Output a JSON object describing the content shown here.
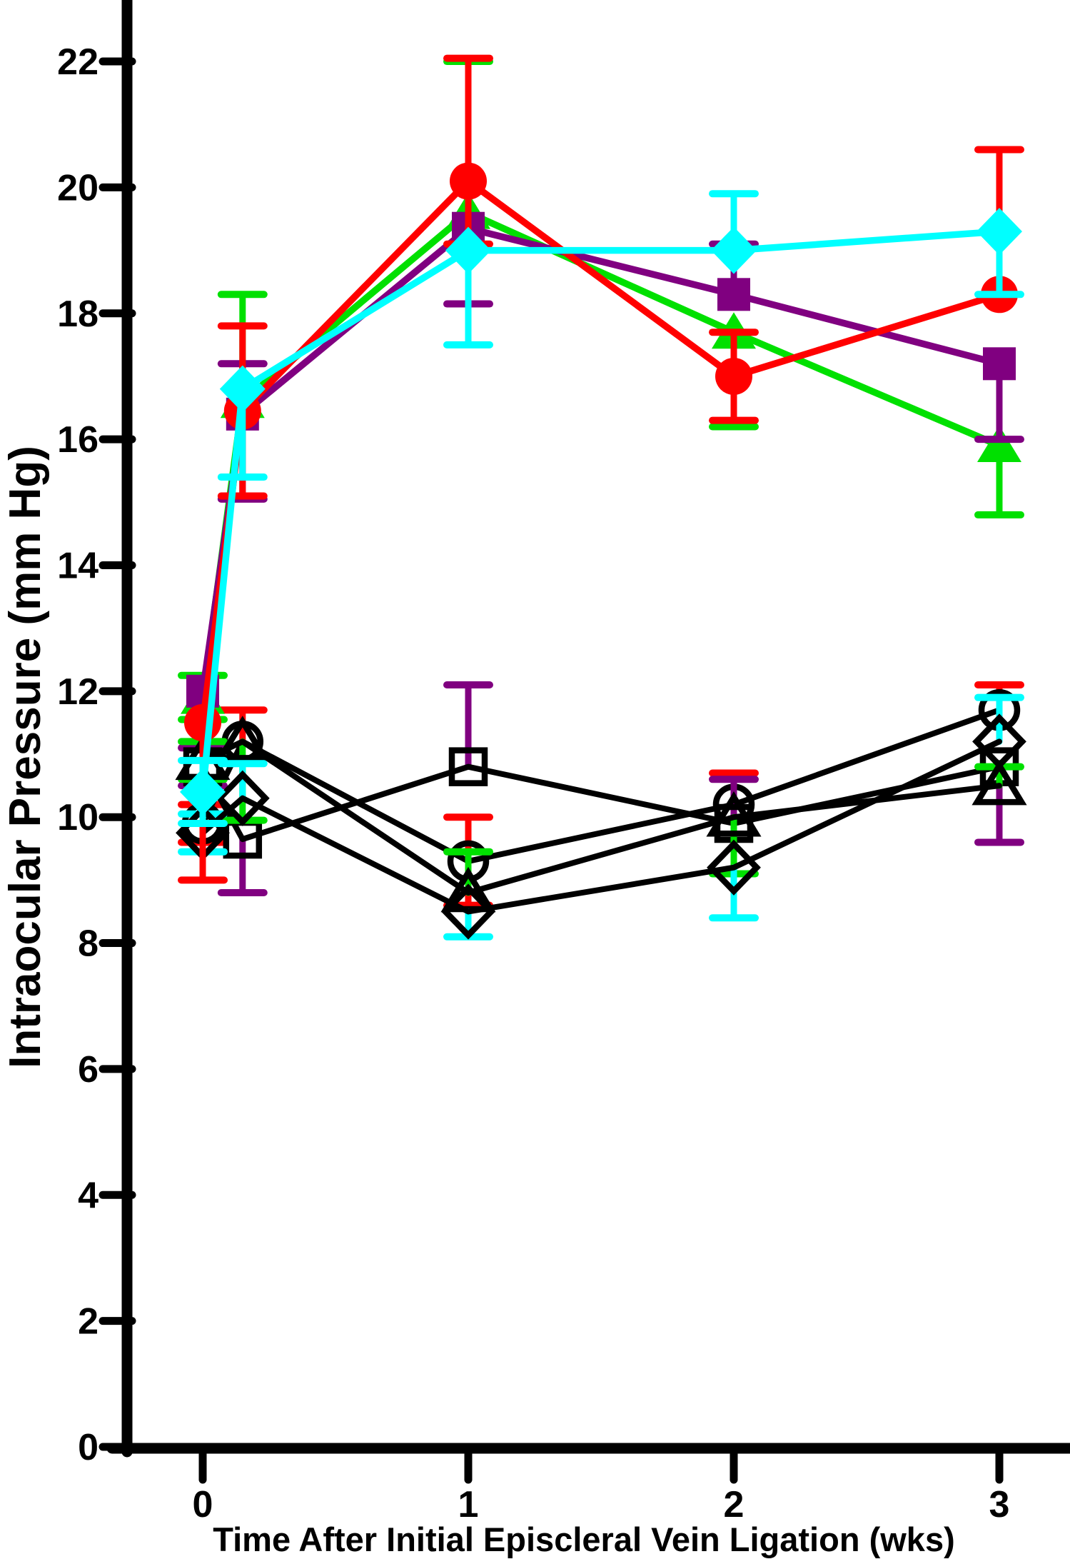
{
  "chart_data": {
    "type": "line",
    "title": "",
    "xlabel": "Time After Initial Episcleral Vein Ligation (wks)",
    "ylabel": "Intraocular  Pressure  (mm Hg)",
    "x": [
      0,
      0.15,
      1,
      2,
      3
    ],
    "x_ticks": [
      0,
      1,
      2,
      3
    ],
    "y_ticks": [
      0,
      2,
      4,
      6,
      8,
      10,
      12,
      14,
      16,
      18,
      20,
      22
    ],
    "ylim": [
      0,
      22
    ],
    "xlim": [
      -0.35,
      3.27
    ],
    "grid": false,
    "legend": "none",
    "series": [
      {
        "name": "ligated-eye-red-circles",
        "marker": "circle",
        "marker_style": "filled",
        "color": "#ff0000",
        "values": [
          11.5,
          16.45,
          20.1,
          17.0,
          18.3
        ],
        "err_up": [
          0,
          1.35,
          1.95,
          0.7,
          2.3
        ],
        "err_down": [
          2.5,
          1.35,
          1.0,
          0.7,
          0
        ]
      },
      {
        "name": "ligated-eye-purple-squares",
        "marker": "square",
        "marker_style": "filled",
        "color": "#800080",
        "values": [
          12.0,
          16.4,
          19.35,
          18.3,
          17.2
        ],
        "err_up": [
          0,
          0.8,
          0,
          0.8,
          0
        ],
        "err_down": [
          0,
          1.35,
          1.2,
          0,
          1.2
        ]
      },
      {
        "name": "ligated-eye-green-triangles",
        "marker": "triangle",
        "marker_style": "filled",
        "color": "#00e000",
        "values": [
          11.9,
          16.6,
          19.6,
          17.7,
          15.9
        ],
        "err_up": [
          0.35,
          1.7,
          2.4,
          0,
          0
        ],
        "err_down": [
          0.35,
          0,
          0,
          1.5,
          1.1
        ]
      },
      {
        "name": "ligated-eye-cyan-diamonds",
        "marker": "diamond",
        "marker_style": "filled",
        "color": "#00ffff",
        "values": [
          10.4,
          16.8,
          19.0,
          19.0,
          19.3
        ],
        "err_up": [
          0.5,
          0,
          0,
          0.9,
          0
        ],
        "err_down": [
          0.5,
          1.4,
          1.5,
          0,
          1.0
        ]
      },
      {
        "name": "fellow-eye-open-circles",
        "marker": "circle",
        "marker_style": "open",
        "color": "#000000",
        "err_color": "#ff0000",
        "values": [
          9.9,
          11.2,
          9.3,
          10.2,
          11.7
        ],
        "err_up": [
          0.3,
          0.5,
          0.7,
          0.5,
          0.4
        ],
        "err_down": [
          0.3,
          0,
          0.7,
          0,
          0
        ]
      },
      {
        "name": "fellow-eye-open-squares",
        "marker": "square",
        "marker_style": "open",
        "color": "#000000",
        "err_color": "#800080",
        "values": [
          10.8,
          9.65,
          10.8,
          9.9,
          10.8
        ],
        "err_up": [
          0.3,
          0,
          1.3,
          0.7,
          0
        ],
        "err_down": [
          0.3,
          0.85,
          0,
          0,
          1.2
        ]
      },
      {
        "name": "fellow-eye-open-triangles",
        "marker": "triangle",
        "marker_style": "open",
        "color": "#000000",
        "err_color": "#00e000",
        "values": [
          10.9,
          11.2,
          8.8,
          10.0,
          10.5
        ],
        "err_up": [
          0.3,
          0,
          0.65,
          0,
          0.3
        ],
        "err_down": [
          0.3,
          1.25,
          0,
          0.9,
          0
        ]
      },
      {
        "name": "fellow-eye-open-diamonds",
        "marker": "diamond",
        "marker_style": "open",
        "color": "#000000",
        "err_color": "#00ffff",
        "values": [
          9.75,
          10.3,
          8.5,
          9.2,
          11.2
        ],
        "err_up": [
          0.3,
          0.55,
          0,
          0,
          0.7
        ],
        "err_down": [
          0.3,
          0,
          0.4,
          0.8,
          0
        ]
      }
    ]
  }
}
